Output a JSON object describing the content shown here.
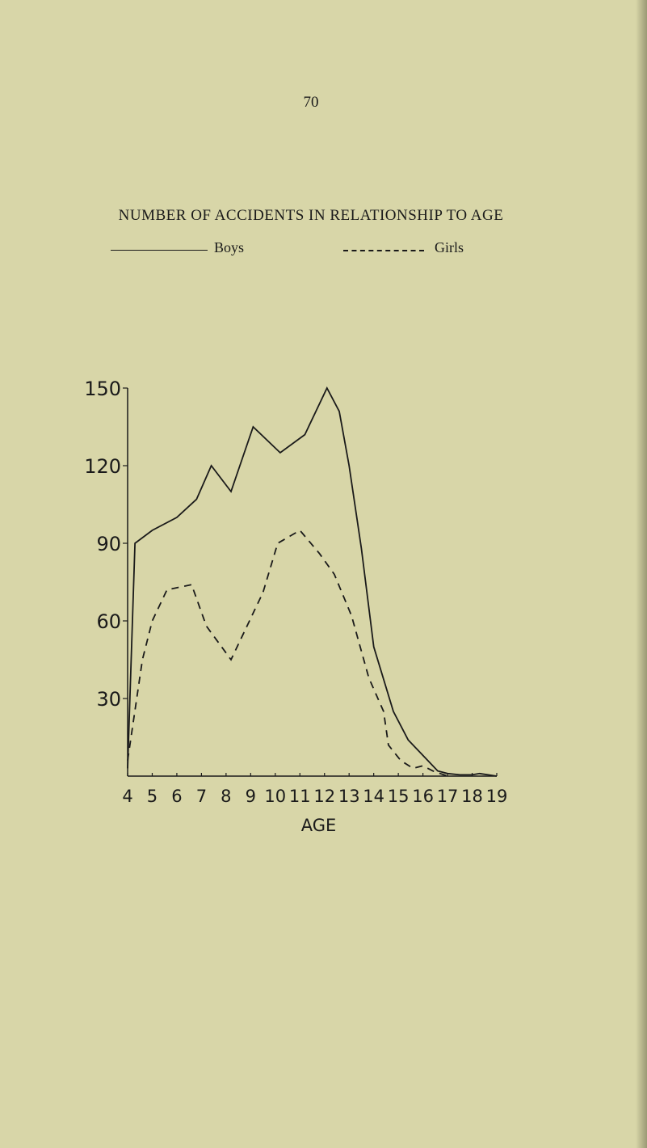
{
  "page_number": "70",
  "chart_data": {
    "type": "line",
    "title": "NUMBER OF ACCIDENTS IN RELATIONSHIP TO AGE",
    "xlabel": "AGE",
    "ylabel": "",
    "x": [
      4,
      5,
      6,
      7,
      8,
      9,
      10,
      11,
      12,
      13,
      14,
      15,
      16,
      17,
      18,
      19
    ],
    "x_tick_labels": [
      "4",
      "5",
      "6",
      "7",
      "8",
      "9",
      "10",
      "11",
      "12",
      "13",
      "14",
      "15",
      "16",
      "17",
      "18",
      "19"
    ],
    "y_ticks": [
      30,
      60,
      90,
      120,
      150
    ],
    "y_tick_labels": [
      "30",
      "60",
      "90",
      "120",
      "150"
    ],
    "ylim": [
      0,
      150
    ],
    "xlim": [
      4,
      19
    ],
    "grid": false,
    "legend_placement": "top",
    "series": [
      {
        "name": "Boys",
        "style": "solid",
        "x": [
          4,
          4.3,
          5,
          6,
          6.8,
          7.4,
          8.2,
          9.1,
          10.2,
          11.2,
          12.1,
          12.6,
          13,
          13.5,
          14,
          14.8,
          15.4,
          16,
          16.6,
          17,
          17.5,
          18,
          18.3,
          19
        ],
        "y": [
          3,
          90,
          95,
          100,
          107,
          120,
          110,
          135,
          125,
          132,
          150,
          141,
          120,
          88,
          50,
          25,
          14,
          8,
          2,
          1,
          0.5,
          0.5,
          1,
          0
        ]
      },
      {
        "name": "Girls",
        "style": "dashed",
        "x": [
          4,
          4.6,
          5,
          5.6,
          6.6,
          7.2,
          8.2,
          9.5,
          10.1,
          11,
          11.8,
          12.4,
          13.1,
          13.8,
          14.4,
          14.6,
          15.1,
          15.6,
          16,
          16.4,
          17
        ],
        "y": [
          6,
          45,
          60,
          72,
          74,
          58,
          45,
          71,
          90,
          95,
          86,
          78,
          62,
          38,
          25,
          12,
          6,
          3,
          4,
          2,
          0
        ]
      }
    ]
  }
}
